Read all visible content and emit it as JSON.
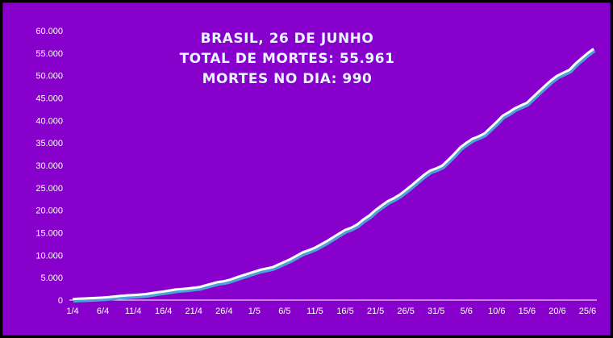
{
  "chart_data": {
    "type": "area",
    "title_lines": [
      "BRASIL,  26 DE JUNHO",
      "TOTAL DE MORTES: 55.961",
      "MORTES NO DIA: 990"
    ],
    "xlabel": "",
    "ylabel": "",
    "ylim": [
      0,
      60000
    ],
    "yticks": [
      0,
      5000,
      10000,
      15000,
      20000,
      25000,
      30000,
      35000,
      40000,
      45000,
      50000,
      55000,
      60000
    ],
    "ytick_labels": [
      "0",
      "5.000",
      "10.000",
      "15.000",
      "20.000",
      "25.000",
      "30.000",
      "35.000",
      "40.000",
      "45.000",
      "50.000",
      "55.000",
      "60.000"
    ],
    "x_tick_labels": [
      "1/4",
      "6/4",
      "11/4",
      "16/4",
      "21/4",
      "26/4",
      "1/5",
      "6/5",
      "11/5",
      "16/5",
      "21/5",
      "26/5",
      "31/5",
      "5/6",
      "10/6",
      "15/6",
      "20/6",
      "25/6"
    ],
    "x": [
      "1/4",
      "2/4",
      "3/4",
      "4/4",
      "5/4",
      "6/4",
      "7/4",
      "8/4",
      "9/4",
      "10/4",
      "11/4",
      "12/4",
      "13/4",
      "14/4",
      "15/4",
      "16/4",
      "17/4",
      "18/4",
      "19/4",
      "20/4",
      "21/4",
      "22/4",
      "23/4",
      "24/4",
      "25/4",
      "26/4",
      "27/4",
      "28/4",
      "29/4",
      "30/4",
      "1/5",
      "2/5",
      "3/5",
      "4/5",
      "5/5",
      "6/5",
      "7/5",
      "8/5",
      "9/5",
      "10/5",
      "11/5",
      "12/5",
      "13/5",
      "14/5",
      "15/5",
      "16/5",
      "17/5",
      "18/5",
      "19/5",
      "20/5",
      "21/5",
      "22/5",
      "23/5",
      "24/5",
      "25/5",
      "26/5",
      "27/5",
      "28/5",
      "29/5",
      "30/5",
      "31/5",
      "1/6",
      "2/6",
      "3/6",
      "4/6",
      "5/6",
      "6/6",
      "7/6",
      "8/6",
      "9/6",
      "10/6",
      "11/6",
      "12/6",
      "13/6",
      "14/6",
      "15/6",
      "16/6",
      "17/6",
      "18/6",
      "19/6",
      "20/6",
      "21/6",
      "22/6",
      "23/6",
      "24/6",
      "25/6",
      "26/6"
    ],
    "series": [
      {
        "values": [
          241,
          299,
          359,
          432,
          486,
          553,
          667,
          800,
          941,
          1057,
          1124,
          1223,
          1328,
          1532,
          1736,
          1924,
          2141,
          2354,
          2462,
          2587,
          2741,
          2906,
          3313,
          3670,
          4016,
          4205,
          4543,
          5017,
          5466,
          5901,
          6329,
          6750,
          7025,
          7321,
          7921,
          8536,
          9146,
          9897,
          10627,
          11123,
          11653,
          12400,
          13149,
          13993,
          14817,
          15633,
          16118,
          16853,
          17971,
          18859,
          20047,
          21048,
          22013,
          22666,
          23473,
          24512,
          25598,
          26754,
          27878,
          28834,
          29314,
          29937,
          31199,
          32548,
          34021,
          35026,
          35930,
          36455,
          37134,
          38406,
          39680,
          41058,
          41828,
          42720,
          43332,
          43959,
          45241,
          46510,
          47748,
          48954,
          49976,
          50617,
          51271,
          52645,
          53830,
          54971,
          55961
        ]
      }
    ],
    "grid": false,
    "legend": "none",
    "colors": {
      "background": "#8800cc",
      "line": "#ffffff",
      "line_shadow": "#4aa3d8",
      "bars": "#ffffff",
      "text": "#ffffff",
      "title": "#e8f6ff"
    }
  }
}
